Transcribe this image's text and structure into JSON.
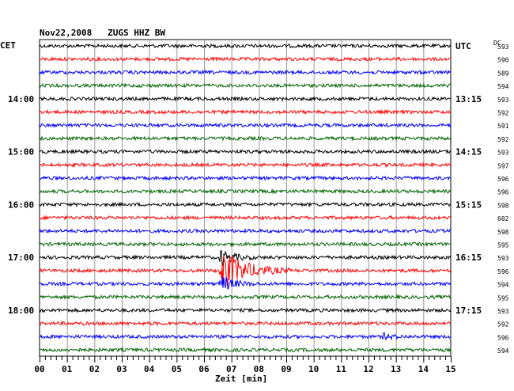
{
  "chart_data": {
    "type": "line",
    "title": "Nov22,2008   ZUGS HHZ BW",
    "left_label": "CET",
    "right_label": "UTC",
    "dc_label": "DC",
    "xlabel": "Zeit [min]",
    "x_ticks": [
      "00",
      "01",
      "02",
      "03",
      "04",
      "05",
      "06",
      "07",
      "08",
      "09",
      "10",
      "11",
      "12",
      "13",
      "14",
      "15"
    ],
    "xlim": [
      0,
      15
    ],
    "trace_colors": [
      "#000000",
      "#ff0000",
      "#0000ff",
      "#006400"
    ],
    "cet_labels": [
      {
        "trace": 4,
        "label": "14:00"
      },
      {
        "trace": 8,
        "label": "15:00"
      },
      {
        "trace": 12,
        "label": "16:00"
      },
      {
        "trace": 16,
        "label": "17:00"
      },
      {
        "trace": 20,
        "label": "18:00"
      }
    ],
    "utc_labels": [
      {
        "trace": 0,
        "label": "UTC"
      },
      {
        "trace": 4,
        "label": "13:15"
      },
      {
        "trace": 8,
        "label": "14:15"
      },
      {
        "trace": 12,
        "label": "15:15"
      },
      {
        "trace": 16,
        "label": "16:15"
      },
      {
        "trace": 20,
        "label": "17:15"
      }
    ],
    "dc_values": [
      "593",
      "590",
      "589",
      "594",
      "593",
      "592",
      "591",
      "592",
      "593",
      "597",
      "596",
      "596",
      "598",
      "602",
      "598",
      "595",
      "593",
      "596",
      "594",
      "595",
      "593",
      "592",
      "596",
      "594"
    ],
    "events": [
      {
        "trace": 17,
        "start_min": 6.55,
        "end_min": 9.1,
        "peak_amplitude": "large"
      },
      {
        "trace": 16,
        "start_min": 6.55,
        "end_min": 7.9,
        "peak_amplitude": "medium"
      },
      {
        "trace": 18,
        "start_min": 6.55,
        "end_min": 7.9,
        "peak_amplitude": "medium"
      },
      {
        "trace": 22,
        "start_min": 12.5,
        "end_min": 13.5,
        "peak_amplitude": "small"
      }
    ],
    "grid": true,
    "trace_count": 24
  }
}
